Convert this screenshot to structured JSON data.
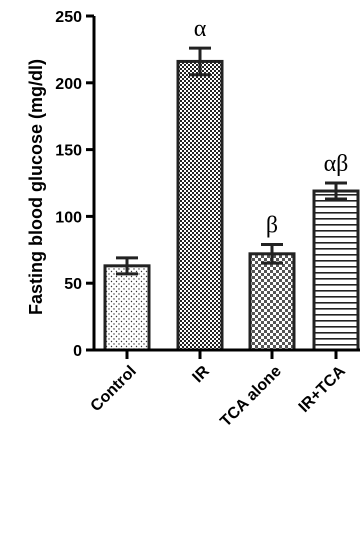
{
  "chart_data": {
    "type": "bar",
    "title": "",
    "xlabel": "",
    "ylabel": "Fasting blood glucose (mg/dl)",
    "ylim": [
      0,
      250
    ],
    "yticks": [
      0,
      50,
      100,
      150,
      200,
      250
    ],
    "ytick_labels": [
      "0",
      "50",
      "100",
      "150",
      "200",
      "250"
    ],
    "grid": false,
    "legend": "none",
    "categories": [
      "Control",
      "IR",
      "TCA alone",
      "IR+TCA"
    ],
    "values": [
      63,
      216,
      72,
      119
    ],
    "errors": [
      6,
      10,
      7,
      6
    ],
    "annotations": [
      "",
      "α",
      "β",
      "αβ"
    ],
    "patterns": [
      "dots",
      "checker-fine",
      "checker-coarse",
      "horizontal-lines"
    ],
    "colors": {
      "stroke": "#222222",
      "axis": "#000000",
      "fill_background": "#ffffff"
    }
  }
}
